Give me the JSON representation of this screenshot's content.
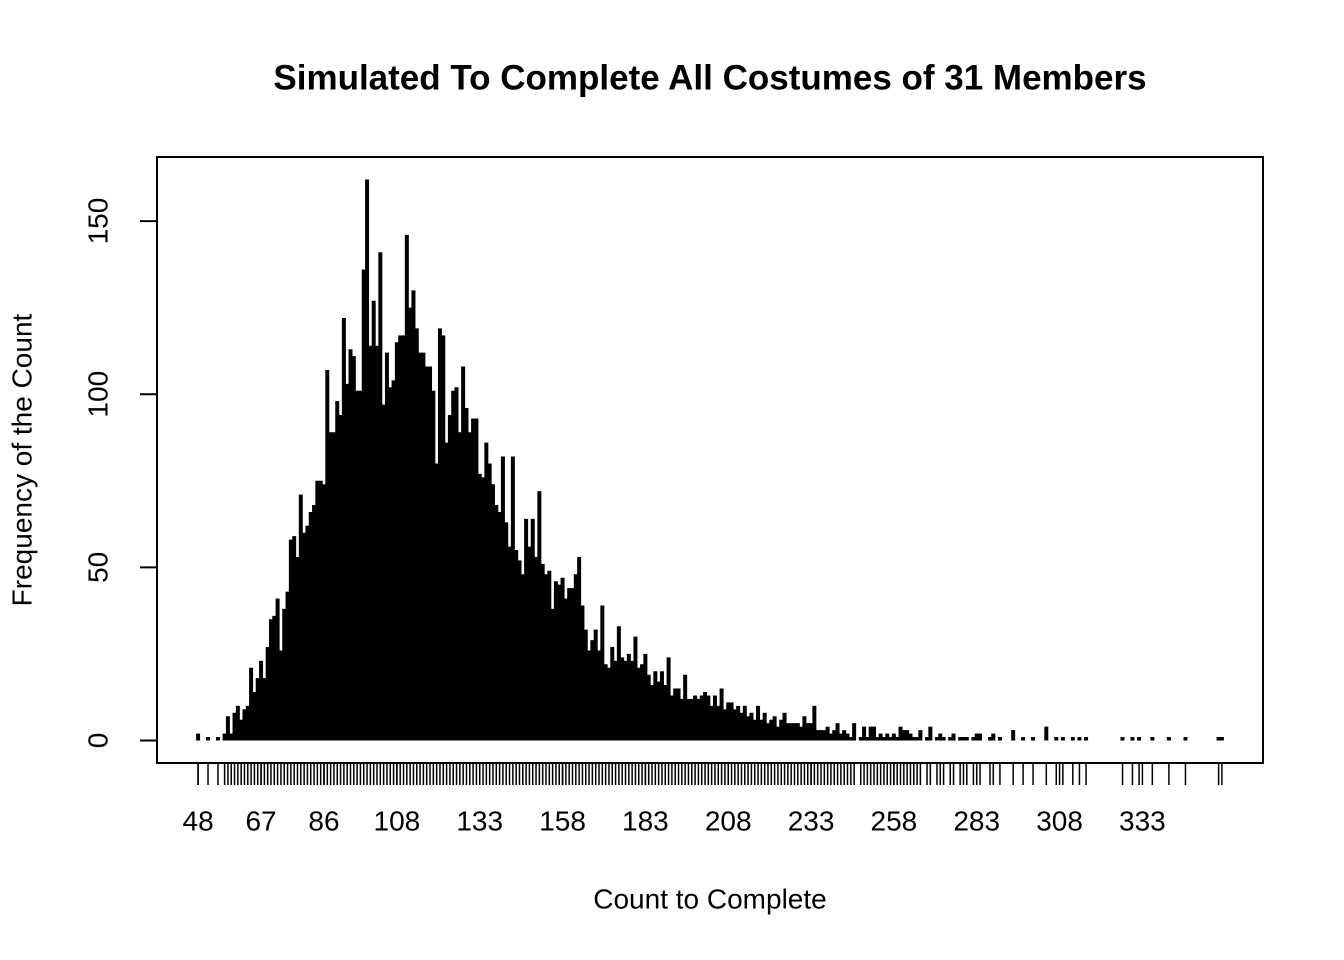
{
  "chart_data": {
    "type": "histogram-lines",
    "title": "Simulated To Complete All Costumes of 31 Members",
    "x_label": "Count to Complete",
    "y_label": "Frequency of the Count",
    "color": "#000000",
    "xlim": [
      35.6,
      369.4
    ],
    "ylim": [
      -6.5,
      168.5
    ],
    "xticks": [
      48,
      67,
      86,
      108,
      133,
      158,
      183,
      208,
      233,
      258,
      283,
      308,
      333
    ],
    "yticks": [
      0,
      50,
      100,
      150
    ],
    "x": [
      48,
      51,
      54,
      56,
      57,
      58,
      59,
      60,
      61,
      62,
      63,
      64,
      65,
      66,
      67,
      68,
      69,
      70,
      71,
      72,
      73,
      74,
      75,
      76,
      77,
      78,
      79,
      80,
      81,
      82,
      83,
      84,
      85,
      86,
      87,
      88,
      89,
      90,
      91,
      92,
      93,
      94,
      95,
      96,
      97,
      98,
      99,
      100,
      101,
      102,
      103,
      104,
      105,
      106,
      107,
      108,
      109,
      110,
      111,
      112,
      113,
      114,
      115,
      116,
      117,
      118,
      119,
      120,
      121,
      122,
      123,
      124,
      125,
      126,
      127,
      128,
      129,
      130,
      131,
      132,
      133,
      134,
      135,
      136,
      137,
      138,
      139,
      140,
      141,
      142,
      143,
      144,
      145,
      146,
      147,
      148,
      149,
      150,
      151,
      152,
      153,
      154,
      155,
      156,
      157,
      158,
      159,
      160,
      161,
      162,
      163,
      164,
      165,
      166,
      167,
      168,
      169,
      170,
      171,
      172,
      173,
      174,
      175,
      176,
      177,
      178,
      179,
      180,
      181,
      182,
      183,
      184,
      185,
      186,
      187,
      188,
      189,
      190,
      191,
      192,
      193,
      194,
      195,
      196,
      197,
      198,
      199,
      200,
      201,
      202,
      203,
      204,
      205,
      206,
      207,
      208,
      209,
      210,
      211,
      212,
      213,
      214,
      215,
      216,
      217,
      218,
      219,
      220,
      221,
      222,
      223,
      224,
      225,
      226,
      227,
      228,
      229,
      230,
      231,
      232,
      233,
      234,
      235,
      236,
      237,
      238,
      239,
      240,
      241,
      242,
      243,
      244,
      245,
      246,
      248,
      249,
      250,
      251,
      252,
      253,
      254,
      255,
      256,
      257,
      258,
      259,
      260,
      261,
      262,
      263,
      264,
      265,
      266,
      268,
      269,
      271,
      272,
      273,
      275,
      276,
      278,
      279,
      280,
      282,
      283,
      284,
      287,
      288,
      290,
      294,
      297,
      300,
      304,
      307,
      309,
      312,
      314,
      316,
      327,
      330,
      332,
      336,
      341,
      346,
      356,
      357
    ],
    "values": [
      2,
      1,
      1,
      2,
      7,
      2,
      8,
      10,
      6,
      9,
      10,
      21,
      14,
      18,
      23,
      18,
      27,
      35,
      36,
      41,
      26,
      38,
      43,
      58,
      59,
      53,
      71,
      60,
      62,
      66,
      68,
      75,
      75,
      74,
      107,
      89,
      89,
      98,
      94,
      122,
      103,
      113,
      111,
      101,
      101,
      136,
      162,
      114,
      127,
      114,
      141,
      97,
      112,
      102,
      104,
      115,
      117,
      117,
      146,
      125,
      130,
      119,
      112,
      112,
      108,
      108,
      101,
      80,
      119,
      117,
      86,
      94,
      101,
      102,
      89,
      108,
      96,
      89,
      93,
      93,
      77,
      76,
      86,
      80,
      74,
      68,
      66,
      82,
      63,
      56,
      82,
      55,
      52,
      48,
      64,
      56,
      64,
      53,
      72,
      51,
      48,
      49,
      38,
      46,
      45,
      47,
      41,
      44,
      44,
      48,
      53,
      39,
      32,
      26,
      29,
      32,
      26,
      39,
      22,
      21,
      27,
      23,
      33,
      24,
      23,
      25,
      23,
      30,
      21,
      22,
      25,
      19,
      16,
      20,
      17,
      20,
      16,
      24,
      13,
      15,
      15,
      12,
      19,
      12,
      12,
      13,
      12,
      13,
      14,
      13,
      10,
      13,
      10,
      15,
      9,
      11,
      11,
      9,
      10,
      8,
      10,
      7,
      8,
      6,
      10,
      6,
      8,
      5,
      6,
      7,
      4,
      6,
      8,
      5,
      5,
      5,
      5,
      4,
      7,
      5,
      5,
      10,
      3,
      3,
      3,
      4,
      2,
      3,
      5,
      2,
      3,
      2,
      1,
      5,
      1,
      4,
      1,
      4,
      4,
      1,
      2,
      1,
      2,
      1,
      2,
      1,
      4,
      3,
      3,
      2,
      1,
      1,
      3,
      1,
      4,
      1,
      2,
      1,
      1,
      2,
      1,
      1,
      1,
      1,
      2,
      2,
      1,
      2,
      1,
      3,
      1,
      1,
      4,
      1,
      1,
      1,
      1,
      1,
      1,
      1,
      1,
      1,
      1,
      1,
      1,
      1
    ]
  }
}
